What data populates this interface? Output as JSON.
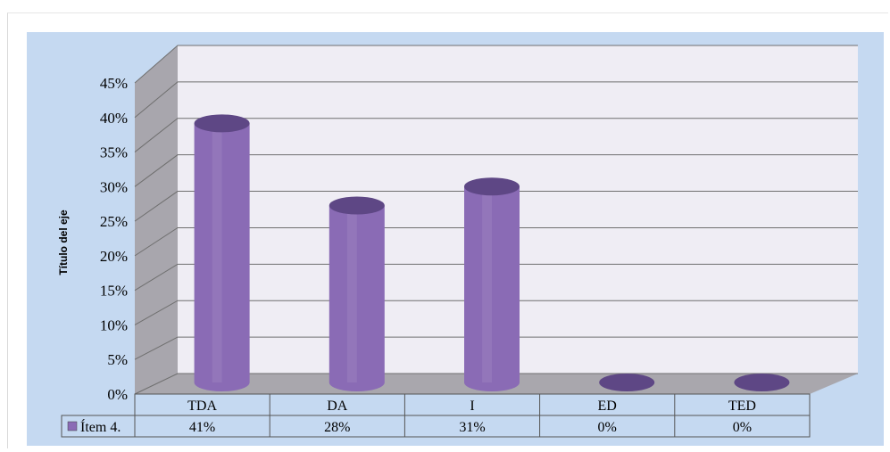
{
  "chart_data": {
    "type": "bar",
    "style": "3d-cylinder",
    "categories": [
      "TDA",
      "DA",
      "I",
      "ED",
      "TED"
    ],
    "series": [
      {
        "name": "Ítem 4.",
        "values": [
          41,
          28,
          31,
          0,
          0
        ],
        "color": "#8a6bb5"
      }
    ],
    "data_table": [
      "41%",
      "28%",
      "31%",
      "0%",
      "0%"
    ],
    "yticks": [
      "0%",
      "5%",
      "10%",
      "15%",
      "20%",
      "25%",
      "30%",
      "35%",
      "40%",
      "45%"
    ],
    "ylim": [
      0,
      45
    ],
    "ylabel": "Título del eje",
    "xlabel": "",
    "grid": true,
    "legend": "data-table-left"
  },
  "colors": {
    "plot_area": "#c5d9f1",
    "back_wall": "#efedf4",
    "side_wall": "#a8a6ad",
    "floor": "#a9a7ad",
    "bar": "#8a6bb5",
    "bar_top": "#5e4785"
  }
}
